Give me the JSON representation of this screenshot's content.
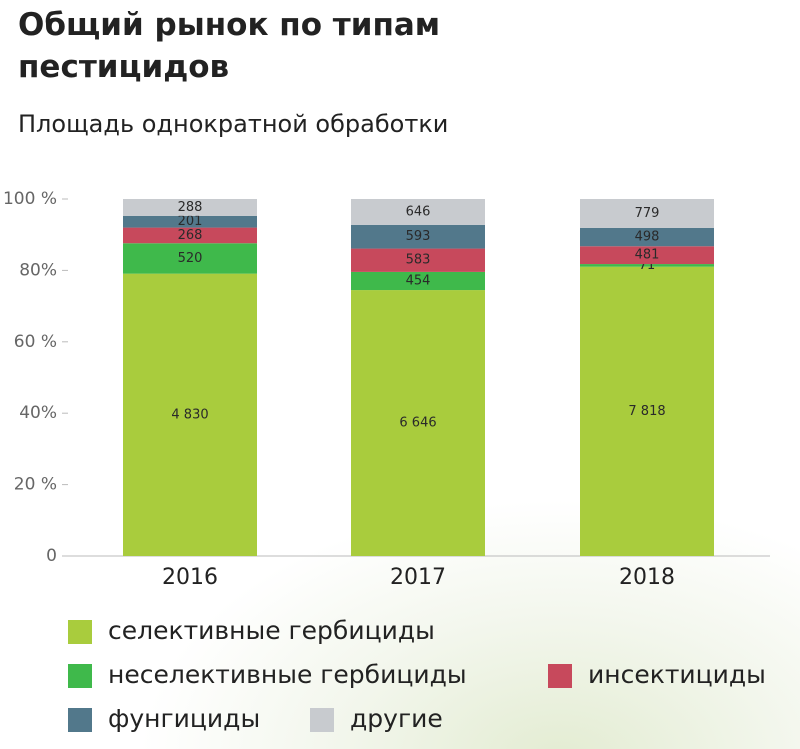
{
  "chart_data": {
    "type": "stacked_bar_percent",
    "title": "Общий рынок по типам пестицидов",
    "subtitle": "Площадь однократной обработки",
    "categories": [
      "2016",
      "2017",
      "2018"
    ],
    "series": [
      {
        "name": "селективные гербициды",
        "color": "#a9cc3d",
        "values": [
          4830,
          6646,
          7818
        ],
        "value_labels": [
          "4 830",
          "6 646",
          "7 818"
        ]
      },
      {
        "name": "неселективные гербициды",
        "color": "#3fb94b",
        "values": [
          520,
          454,
          71
        ]
      },
      {
        "name": "инсектициды",
        "color": "#c7495c",
        "values": [
          268,
          583,
          481
        ]
      },
      {
        "name": "фунгициды",
        "color": "#52788b",
        "values": [
          201,
          593,
          498
        ]
      },
      {
        "name": "другие",
        "color": "#c8cbcf",
        "values": [
          288,
          646,
          779
        ]
      }
    ],
    "ylim": [
      0,
      100
    ],
    "yticks": [
      0,
      {
        "value": 20,
        "label": "20 %"
      },
      {
        "value": 40,
        "label": "40%"
      },
      {
        "value": 60,
        "label": "60 %"
      },
      {
        "value": 80,
        "label": "80%"
      },
      {
        "value": 100,
        "label": "100 %"
      }
    ]
  }
}
